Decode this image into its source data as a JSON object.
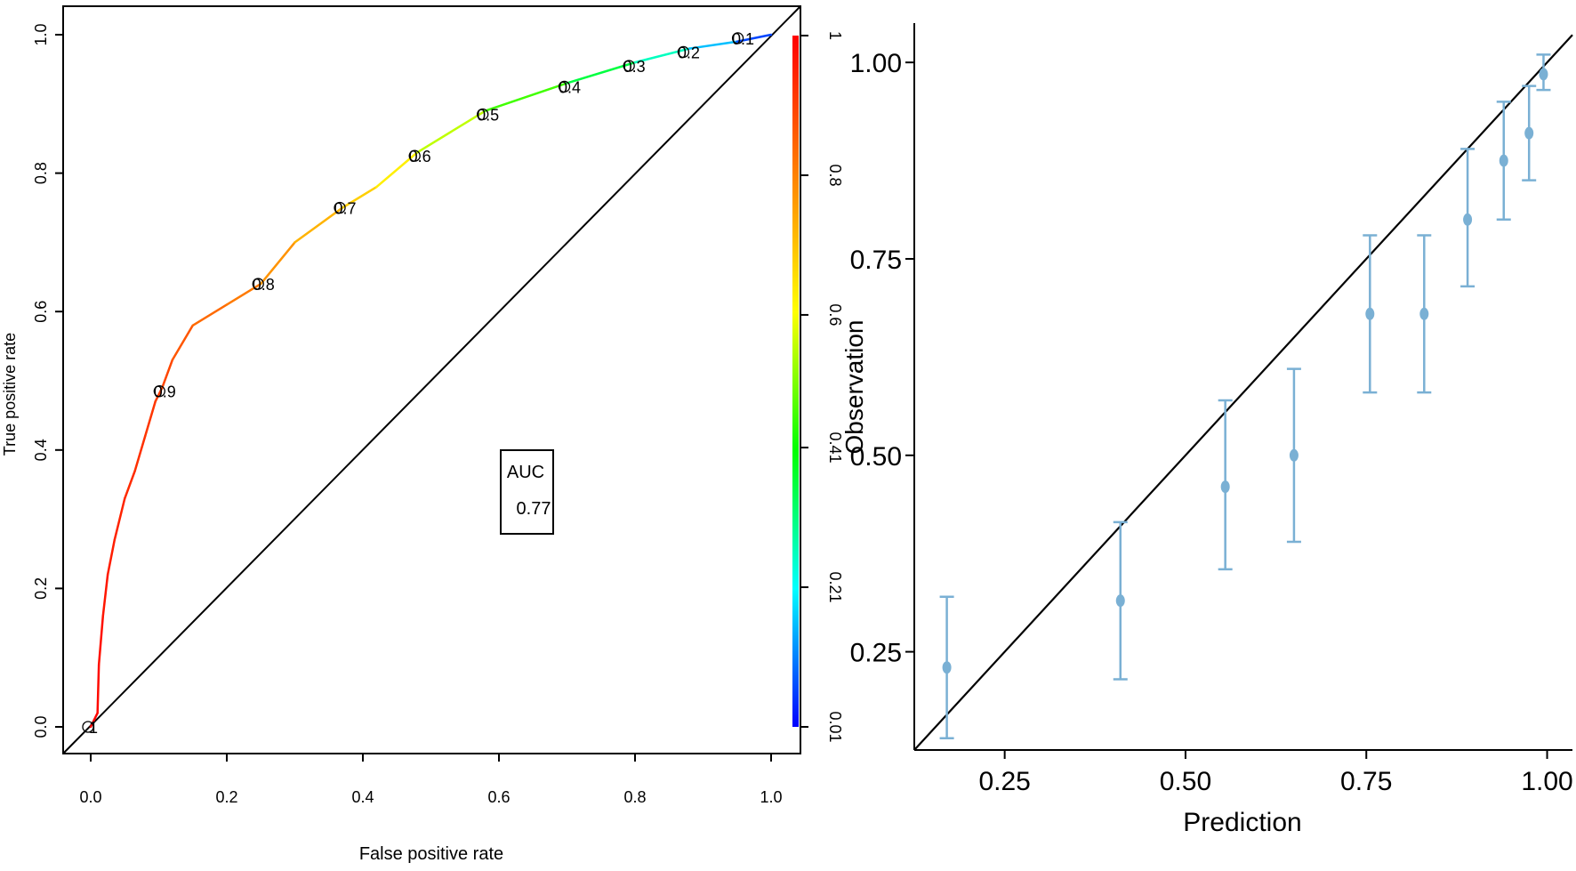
{
  "chart_data": [
    {
      "type": "line",
      "xlabel": "False positive rate",
      "ylabel": "True positive rate",
      "xlim": [
        0,
        1
      ],
      "ylim": [
        0,
        1
      ],
      "x_ticks": [
        "0.0",
        "0.2",
        "0.4",
        "0.6",
        "0.8",
        "1.0"
      ],
      "y_ticks": [
        "0.0",
        "0.2",
        "0.4",
        "0.6",
        "0.8",
        "1.0"
      ],
      "colorbar_ticks": [
        "0.01",
        "0.21",
        "0.41",
        "0.6",
        "0.8",
        "1"
      ],
      "colorbar_colors": [
        "#0000ff",
        "#00ffff",
        "#00ff00",
        "#ffff00",
        "#ff8000",
        "#ff0000"
      ],
      "roc_fpr": [
        0.0,
        0.005,
        0.01,
        0.012,
        0.018,
        0.025,
        0.035,
        0.05,
        0.065,
        0.08,
        0.095,
        0.105,
        0.12,
        0.15,
        0.2,
        0.25,
        0.3,
        0.37,
        0.42,
        0.48,
        0.58,
        0.7,
        0.8,
        0.88,
        0.95,
        1.0
      ],
      "roc_tpr": [
        0.0,
        0.01,
        0.02,
        0.09,
        0.16,
        0.22,
        0.27,
        0.33,
        0.37,
        0.42,
        0.47,
        0.49,
        0.53,
        0.58,
        0.61,
        0.64,
        0.7,
        0.75,
        0.78,
        0.83,
        0.89,
        0.93,
        0.96,
        0.98,
        0.99,
        1.0
      ],
      "roc_threshold": [
        1.0,
        0.995,
        0.99,
        0.98,
        0.97,
        0.96,
        0.95,
        0.94,
        0.93,
        0.92,
        0.91,
        0.9,
        0.88,
        0.85,
        0.82,
        0.8,
        0.74,
        0.7,
        0.65,
        0.6,
        0.5,
        0.4,
        0.3,
        0.2,
        0.1,
        0.01
      ],
      "threshold_labels": [
        {
          "label": "1",
          "fpr": 0.0,
          "tpr": 0.0
        },
        {
          "label": "0.9",
          "fpr": 0.105,
          "tpr": 0.485
        },
        {
          "label": "0.8",
          "fpr": 0.25,
          "tpr": 0.64
        },
        {
          "label": "0.7",
          "fpr": 0.37,
          "tpr": 0.75
        },
        {
          "label": "0.6",
          "fpr": 0.48,
          "tpr": 0.825
        },
        {
          "label": "0.5",
          "fpr": 0.58,
          "tpr": 0.885
        },
        {
          "label": "0.4",
          "fpr": 0.7,
          "tpr": 0.925
        },
        {
          "label": "0.3",
          "fpr": 0.795,
          "tpr": 0.955
        },
        {
          "label": "0.2",
          "fpr": 0.875,
          "tpr": 0.975
        },
        {
          "label": "0.1",
          "fpr": 0.955,
          "tpr": 0.995
        }
      ],
      "auc_box": {
        "title": "AUC",
        "value": "0.77"
      }
    },
    {
      "type": "scatter",
      "xlabel": "Prediction",
      "ylabel": "Observation",
      "xlim": [
        0.125,
        1.035
      ],
      "ylim": [
        0.125,
        1.05
      ],
      "x_ticks": [
        "0.25",
        "0.50",
        "0.75",
        "1.00"
      ],
      "y_ticks": [
        "0.25",
        "0.50",
        "0.75",
        "1.00"
      ],
      "point_color": "#7ab0d4",
      "points": [
        {
          "x": 0.17,
          "y": 0.23,
          "lo": 0.14,
          "hi": 0.32
        },
        {
          "x": 0.41,
          "y": 0.315,
          "lo": 0.215,
          "hi": 0.415
        },
        {
          "x": 0.555,
          "y": 0.46,
          "lo": 0.355,
          "hi": 0.57
        },
        {
          "x": 0.65,
          "y": 0.5,
          "lo": 0.39,
          "hi": 0.61
        },
        {
          "x": 0.755,
          "y": 0.68,
          "lo": 0.58,
          "hi": 0.78
        },
        {
          "x": 0.83,
          "y": 0.68,
          "lo": 0.58,
          "hi": 0.78
        },
        {
          "x": 0.89,
          "y": 0.8,
          "lo": 0.715,
          "hi": 0.89
        },
        {
          "x": 0.94,
          "y": 0.875,
          "lo": 0.8,
          "hi": 0.95
        },
        {
          "x": 0.975,
          "y": 0.91,
          "lo": 0.85,
          "hi": 0.97
        },
        {
          "x": 0.995,
          "y": 0.985,
          "lo": 0.965,
          "hi": 1.01
        }
      ],
      "reference_line": {
        "from": [
          0.125,
          0.125
        ],
        "to": [
          1.035,
          1.035
        ]
      }
    }
  ]
}
